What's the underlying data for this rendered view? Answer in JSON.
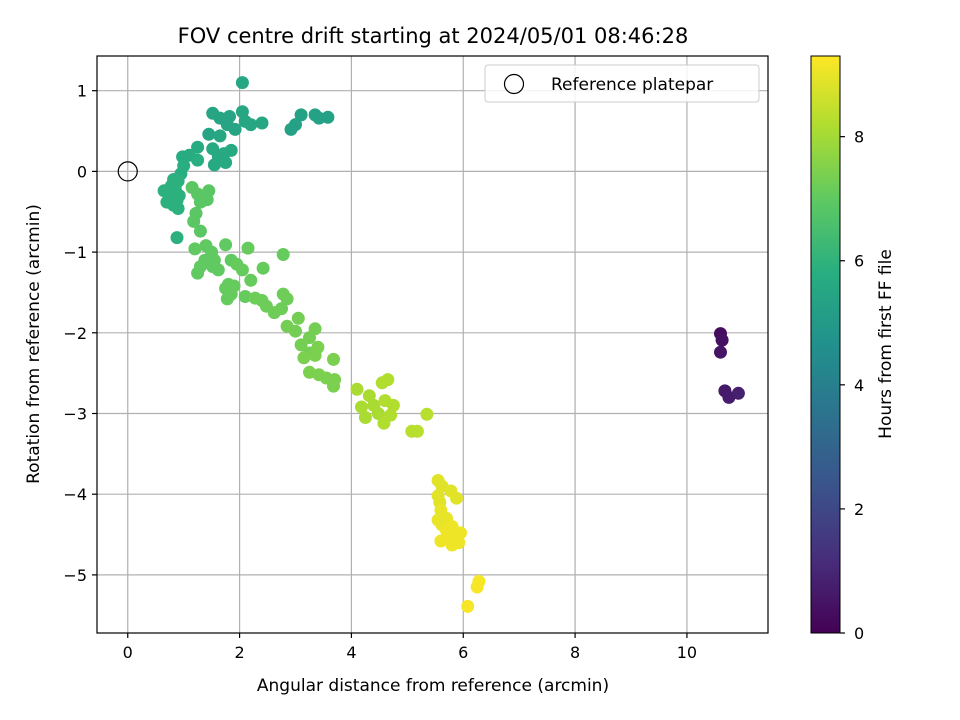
{
  "chart_data": {
    "type": "scatter",
    "title": "FOV centre drift starting at 2024/05/01 08:46:28",
    "xlabel": "Angular distance from reference (arcmin)",
    "ylabel": "Rotation from reference (arcmin)",
    "xlim": [
      -0.55,
      11.45
    ],
    "ylim": [
      -5.72,
      1.43
    ],
    "x_ticks": [
      0,
      2,
      4,
      6,
      8,
      10
    ],
    "x_tick_labels": [
      "0",
      "2",
      "4",
      "6",
      "8",
      "10"
    ],
    "y_ticks": [
      1,
      0,
      -1,
      -2,
      -3,
      -4,
      -5
    ],
    "y_tick_labels": [
      "1",
      "0",
      "−1",
      "−2",
      "−3",
      "−4",
      "−5"
    ],
    "grid": true,
    "legend": {
      "position": "upper right",
      "entries": [
        "Reference platepar"
      ]
    },
    "reference_point": {
      "x": 0,
      "y": 0
    },
    "colorbar": {
      "label": "Hours from first FF file",
      "colormap": "viridis",
      "range": [
        0,
        9.3
      ],
      "ticks": [
        0,
        2,
        4,
        6,
        8
      ],
      "tick_labels": [
        "0",
        "2",
        "4",
        "6",
        "8"
      ]
    },
    "points": [
      [
        10.6,
        -2.01,
        0.3
      ],
      [
        10.63,
        -2.09,
        0.4
      ],
      [
        10.6,
        -2.24,
        0.5
      ],
      [
        10.68,
        -2.72,
        0.6
      ],
      [
        10.75,
        -2.8,
        0.7
      ],
      [
        10.92,
        -2.75,
        0.8
      ],
      [
        2.05,
        1.1,
        5.5
      ],
      [
        1.52,
        0.72,
        5.4
      ],
      [
        1.65,
        0.66,
        5.4
      ],
      [
        1.82,
        0.68,
        5.4
      ],
      [
        2.05,
        0.74,
        5.5
      ],
      [
        2.1,
        0.62,
        5.5
      ],
      [
        1.78,
        0.58,
        5.4
      ],
      [
        1.92,
        0.52,
        5.4
      ],
      [
        2.2,
        0.58,
        5.5
      ],
      [
        2.4,
        0.6,
        5.5
      ],
      [
        1.45,
        0.46,
        5.4
      ],
      [
        1.65,
        0.44,
        5.5
      ],
      [
        1.52,
        0.28,
        5.6
      ],
      [
        1.62,
        0.18,
        5.6
      ],
      [
        1.72,
        0.22,
        5.6
      ],
      [
        1.85,
        0.26,
        5.6
      ],
      [
        1.55,
        0.08,
        5.6
      ],
      [
        1.75,
        0.11,
        5.6
      ],
      [
        3.1,
        0.7,
        5.3
      ],
      [
        3.0,
        0.58,
        5.3
      ],
      [
        2.92,
        0.52,
        5.3
      ],
      [
        3.35,
        0.7,
        5.3
      ],
      [
        3.42,
        0.66,
        5.3
      ],
      [
        3.58,
        0.67,
        5.3
      ],
      [
        1.25,
        0.3,
        5.7
      ],
      [
        1.1,
        0.2,
        5.7
      ],
      [
        0.98,
        0.18,
        5.7
      ],
      [
        1.25,
        0.14,
        5.8
      ],
      [
        1.0,
        0.07,
        5.8
      ],
      [
        0.95,
        -0.03,
        5.8
      ],
      [
        0.82,
        -0.1,
        5.9
      ],
      [
        0.78,
        -0.18,
        5.9
      ],
      [
        0.9,
        -0.12,
        5.9
      ],
      [
        0.65,
        -0.24,
        5.9
      ],
      [
        0.75,
        -0.28,
        5.9
      ],
      [
        0.85,
        -0.22,
        5.9
      ],
      [
        0.7,
        -0.38,
        5.9
      ],
      [
        0.82,
        -0.42,
        5.9
      ],
      [
        0.88,
        -0.36,
        5.9
      ],
      [
        0.9,
        -0.46,
        5.9
      ],
      [
        0.92,
        -0.3,
        5.9
      ],
      [
        0.88,
        -0.82,
        5.9
      ],
      [
        1.15,
        -0.2,
        6.9
      ],
      [
        1.25,
        -0.28,
        6.9
      ],
      [
        1.45,
        -0.24,
        6.9
      ],
      [
        1.3,
        -0.38,
        6.9
      ],
      [
        1.35,
        -0.36,
        6.9
      ],
      [
        1.42,
        -0.35,
        6.9
      ],
      [
        1.22,
        -0.52,
        6.9
      ],
      [
        1.18,
        -0.62,
        6.9
      ],
      [
        1.3,
        -0.74,
        6.9
      ],
      [
        1.2,
        -0.96,
        7.0
      ],
      [
        1.4,
        -0.92,
        7.0
      ],
      [
        1.5,
        -1.0,
        7.0
      ],
      [
        1.38,
        -1.1,
        7.0
      ],
      [
        1.55,
        -1.1,
        7.0
      ],
      [
        1.3,
        -1.18,
        7.0
      ],
      [
        1.52,
        -1.18,
        7.0
      ],
      [
        1.25,
        -1.26,
        7.0
      ],
      [
        1.62,
        -1.22,
        7.0
      ],
      [
        1.75,
        -0.91,
        7.0
      ],
      [
        1.85,
        -1.1,
        7.0
      ],
      [
        2.15,
        -0.95,
        7.1
      ],
      [
        1.95,
        -1.15,
        7.1
      ],
      [
        2.05,
        -1.22,
        7.1
      ],
      [
        2.42,
        -1.2,
        7.1
      ],
      [
        2.78,
        -1.03,
        7.1
      ],
      [
        2.2,
        -1.35,
        7.1
      ],
      [
        1.75,
        -1.45,
        7.1
      ],
      [
        1.8,
        -1.4,
        7.1
      ],
      [
        1.9,
        -1.42,
        7.1
      ],
      [
        1.85,
        -1.52,
        7.1
      ],
      [
        1.78,
        -1.58,
        7.1
      ],
      [
        2.1,
        -1.55,
        7.1
      ],
      [
        2.28,
        -1.57,
        7.2
      ],
      [
        2.4,
        -1.6,
        7.2
      ],
      [
        2.48,
        -1.67,
        7.2
      ],
      [
        2.62,
        -1.75,
        7.2
      ],
      [
        2.75,
        -1.7,
        7.2
      ],
      [
        2.78,
        -1.52,
        7.2
      ],
      [
        2.85,
        -1.58,
        7.2
      ],
      [
        2.85,
        -1.92,
        7.3
      ],
      [
        3.0,
        -1.98,
        7.3
      ],
      [
        3.05,
        -1.82,
        7.3
      ],
      [
        3.25,
        -2.06,
        7.3
      ],
      [
        3.35,
        -1.95,
        7.3
      ],
      [
        3.1,
        -2.15,
        7.3
      ],
      [
        3.25,
        -2.25,
        7.3
      ],
      [
        3.35,
        -2.28,
        7.4
      ],
      [
        3.4,
        -2.18,
        7.4
      ],
      [
        3.15,
        -2.31,
        7.4
      ],
      [
        3.25,
        -2.49,
        7.4
      ],
      [
        3.42,
        -2.52,
        7.4
      ],
      [
        3.55,
        -2.56,
        7.4
      ],
      [
        3.68,
        -2.33,
        7.4
      ],
      [
        3.7,
        -2.58,
        7.4
      ],
      [
        3.68,
        -2.66,
        7.4
      ],
      [
        4.1,
        -2.7,
        8.1
      ],
      [
        4.18,
        -2.92,
        8.1
      ],
      [
        4.25,
        -3.05,
        8.1
      ],
      [
        4.32,
        -2.78,
        8.1
      ],
      [
        4.4,
        -2.9,
        8.1
      ],
      [
        4.48,
        -3.0,
        8.1
      ],
      [
        4.55,
        -2.62,
        8.2
      ],
      [
        4.65,
        -2.58,
        8.2
      ],
      [
        4.6,
        -2.84,
        8.2
      ],
      [
        4.58,
        -3.12,
        8.2
      ],
      [
        4.7,
        -3.02,
        8.2
      ],
      [
        4.75,
        -2.9,
        8.2
      ],
      [
        5.08,
        -3.22,
        8.3
      ],
      [
        5.18,
        -3.22,
        8.3
      ],
      [
        5.35,
        -3.01,
        8.3
      ],
      [
        5.55,
        -3.83,
        8.9
      ],
      [
        5.62,
        -3.9,
        8.9
      ],
      [
        5.55,
        -4.02,
        8.9
      ],
      [
        5.58,
        -4.1,
        8.9
      ],
      [
        5.78,
        -3.96,
        8.9
      ],
      [
        5.88,
        -4.05,
        8.9
      ],
      [
        5.6,
        -4.2,
        9.0
      ],
      [
        5.7,
        -4.3,
        9.0
      ],
      [
        5.55,
        -4.32,
        9.0
      ],
      [
        5.62,
        -4.38,
        9.0
      ],
      [
        5.7,
        -4.45,
        9.1
      ],
      [
        5.8,
        -4.4,
        9.1
      ],
      [
        5.88,
        -4.48,
        9.1
      ],
      [
        5.95,
        -4.48,
        9.1
      ],
      [
        5.6,
        -4.58,
        9.1
      ],
      [
        5.72,
        -4.55,
        9.1
      ],
      [
        5.8,
        -4.63,
        9.1
      ],
      [
        5.92,
        -4.6,
        9.1
      ],
      [
        6.28,
        -5.08,
        9.2
      ],
      [
        6.25,
        -5.15,
        9.2
      ],
      [
        6.08,
        -5.39,
        9.2
      ]
    ]
  }
}
